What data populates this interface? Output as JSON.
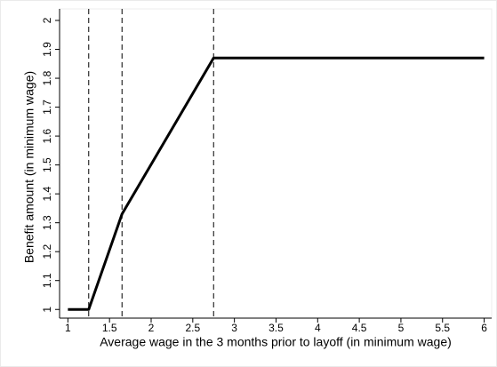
{
  "chart_data": {
    "type": "line",
    "x_label": "Average wage in the 3 months prior to layoff (in minimum wage)",
    "y_label": "Benefit amount (in minimum wage)",
    "x": [
      1,
      1.25,
      1.65,
      2.75,
      6
    ],
    "series": [
      {
        "color": "#000000",
        "values": [
          1,
          1,
          1.33,
          1.87,
          1.87
        ]
      }
    ],
    "vlines": [
      1.25,
      1.65,
      2.75
    ],
    "xlim": [
      0.9,
      6.09
    ],
    "ylim": [
      0.97,
      2.04
    ],
    "xticks": [
      1,
      1.5,
      2,
      2.5,
      3,
      3.5,
      4,
      4.5,
      5,
      5.5,
      6
    ],
    "yticks": [
      1,
      1.1,
      1.2,
      1.3,
      1.4,
      1.5,
      1.6,
      1.7,
      1.8,
      1.9,
      2
    ],
    "grid": false
  }
}
